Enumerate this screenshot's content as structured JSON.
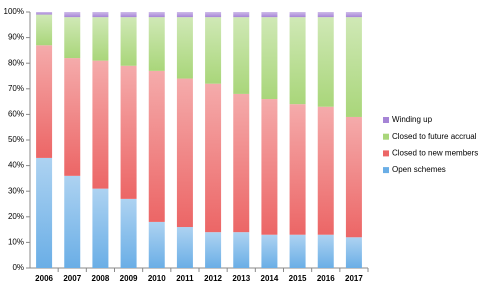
{
  "chart_data": {
    "type": "stacked-bar",
    "categories": [
      "2006",
      "2007",
      "2008",
      "2009",
      "2010",
      "2011",
      "2012",
      "2013",
      "2014",
      "2015",
      "2016",
      "2017"
    ],
    "series": [
      {
        "name": "Open schemes",
        "color": "#6aaee6",
        "values": [
          43,
          36,
          31,
          27,
          18,
          16,
          14,
          14,
          13,
          13,
          13,
          12
        ]
      },
      {
        "name": "Closed to new members",
        "color": "#ec6666",
        "values": [
          44,
          46,
          50,
          52,
          59,
          58,
          58,
          54,
          53,
          51,
          50,
          47
        ]
      },
      {
        "name": "Closed to future accrual",
        "color": "#a9d67a",
        "values": [
          12,
          16,
          17,
          19,
          21,
          24,
          26,
          30,
          32,
          34,
          35,
          39
        ]
      },
      {
        "name": "Winding up",
        "color": "#a684d6",
        "values": [
          1,
          2,
          2,
          2,
          2,
          2,
          2,
          2,
          2,
          2,
          2,
          2
        ]
      }
    ],
    "ylim": [
      0,
      100
    ],
    "yticks": [
      {
        "value": 0,
        "label": "0%"
      },
      {
        "value": 10,
        "label": "10%"
      },
      {
        "value": 20,
        "label": "20%"
      },
      {
        "value": 30,
        "label": "30%"
      },
      {
        "value": 40,
        "label": "40%"
      },
      {
        "value": 50,
        "label": "50%"
      },
      {
        "value": 60,
        "label": "60%"
      },
      {
        "value": 70,
        "label": "70%"
      },
      {
        "value": 80,
        "label": "80%"
      },
      {
        "value": 90,
        "label": "90%"
      },
      {
        "value": 100,
        "label": "100%"
      }
    ],
    "legend": "right"
  }
}
